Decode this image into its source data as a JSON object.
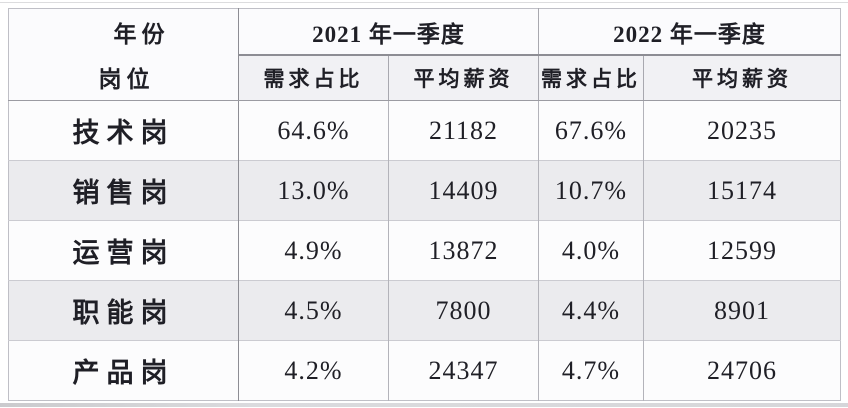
{
  "chart_data": {
    "type": "table",
    "title": "",
    "corner": {
      "top": "年份",
      "bottom": "岗位"
    },
    "column_groups": [
      {
        "label": "2021 年一季度",
        "sub_columns": [
          "需求占比",
          "平均薪资"
        ]
      },
      {
        "label": "2022 年一季度",
        "sub_columns": [
          "需求占比",
          "平均薪资"
        ]
      }
    ],
    "rows": [
      {
        "label": "技术岗",
        "values": [
          "64.6%",
          "21182",
          "67.6%",
          "20235"
        ]
      },
      {
        "label": "销售岗",
        "values": [
          "13.0%",
          "14409",
          "10.7%",
          "15174"
        ]
      },
      {
        "label": "运营岗",
        "values": [
          "4.9%",
          "13872",
          "4.0%",
          "12599"
        ]
      },
      {
        "label": "职能岗",
        "values": [
          "4.5%",
          "7800",
          "4.4%",
          "8901"
        ]
      },
      {
        "label": "产品岗",
        "values": [
          "4.2%",
          "24347",
          "4.7%",
          "24706"
        ]
      }
    ]
  },
  "colors": {
    "row_background": "#fcfcfd",
    "row_alt_background": "#ebebee",
    "subheader_background": "#f1f1f4",
    "border_light": "#cbcbd1",
    "border_dark": "#8d8d94",
    "text": "#1f1f26"
  }
}
